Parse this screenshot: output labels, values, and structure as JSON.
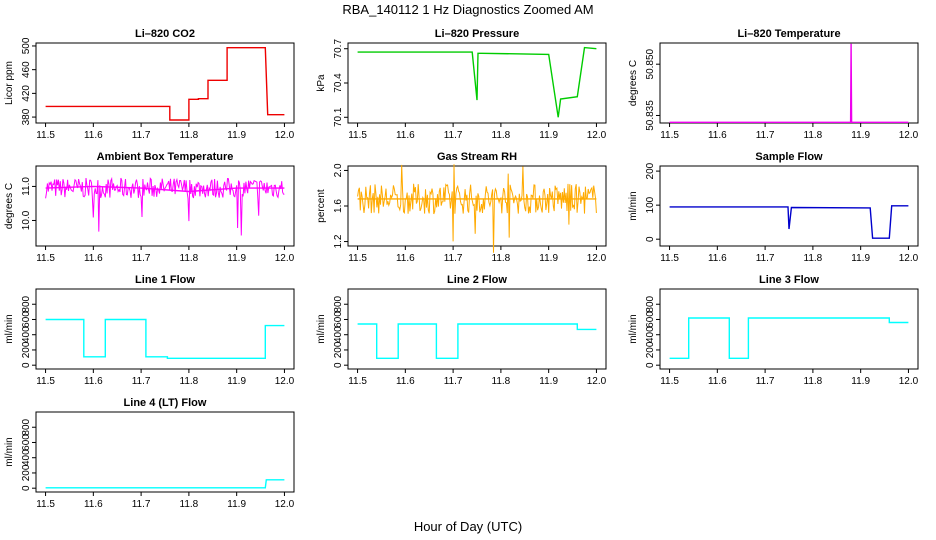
{
  "figure": {
    "title": "RBA_140112  1 Hz Diagnostics Zoomed AM",
    "xlabel": "Hour of Day (UTC)"
  },
  "chart_data": [
    {
      "type": "line",
      "title": "Li–820 CO2",
      "ylabel": "Licor ppm",
      "color": "#ee0000",
      "xlim": [
        11.48,
        12.02
      ],
      "ylim": [
        370,
        505
      ],
      "xticks": [
        "11.5",
        "11.6",
        "11.7",
        "11.8",
        "11.9",
        "12.0"
      ],
      "yticks": [
        "380",
        "420",
        "460",
        "500"
      ],
      "x": [
        11.5,
        11.76,
        11.76,
        11.8,
        11.8,
        11.82,
        11.82,
        11.84,
        11.84,
        11.88,
        11.88,
        11.96,
        11.965,
        12.0
      ],
      "y": [
        398,
        398,
        375,
        375,
        410,
        410,
        411,
        411,
        442,
        442,
        497,
        497,
        384,
        384
      ]
    },
    {
      "type": "line",
      "title": "Li–820 Pressure",
      "ylabel": "kPa",
      "color": "#00cc00",
      "xlim": [
        11.48,
        12.02
      ],
      "ylim": [
        70.05,
        70.75
      ],
      "xticks": [
        "11.5",
        "11.6",
        "11.7",
        "11.8",
        "11.9",
        "12.0"
      ],
      "yticks": [
        "70.1",
        "70.4",
        "70.7"
      ],
      "x": [
        11.5,
        11.74,
        11.75,
        11.752,
        11.76,
        11.9,
        11.92,
        11.925,
        11.96,
        11.975,
        12.0
      ],
      "y": [
        70.67,
        70.67,
        70.25,
        70.66,
        70.66,
        70.65,
        70.1,
        70.26,
        70.28,
        70.71,
        70.7
      ]
    },
    {
      "type": "line",
      "title": "Li–820 Temperature",
      "ylabel": "degrees C",
      "color": "#ee00ee",
      "xlim": [
        11.48,
        12.02
      ],
      "ylim": [
        50.8328,
        50.8562
      ],
      "xticks": [
        "11.5",
        "11.6",
        "11.7",
        "11.8",
        "11.9",
        "12.0"
      ],
      "yticks": [
        "50.835",
        "50.850"
      ],
      "x": [
        11.5,
        11.879,
        11.88,
        11.881,
        12.0
      ],
      "y": [
        50.833,
        50.833,
        50.856,
        50.833,
        50.833
      ]
    },
    {
      "type": "line",
      "title": "Ambient Box Temperature",
      "ylabel": "degrees C",
      "color": "#ff00ff",
      "xlim": [
        11.48,
        12.02
      ],
      "ylim": [
        9.25,
        11.6
      ],
      "xticks": [
        "11.5",
        "11.6",
        "11.7",
        "11.8",
        "11.9",
        "12.0"
      ],
      "yticks": [
        "10.0",
        "11.0"
      ],
      "x": [
        11.5,
        11.6,
        11.7,
        11.8,
        11.9,
        12.0
      ],
      "y": [
        10.95,
        11.0,
        10.95,
        10.85,
        10.95,
        10.95
      ]
    },
    {
      "type": "line",
      "title": "Gas Stream RH",
      "ylabel": "percent",
      "color": "#ffaa00",
      "xlim": [
        11.48,
        12.02
      ],
      "ylim": [
        1.15,
        2.05
      ],
      "xticks": [
        "11.5",
        "11.6",
        "11.7",
        "11.8",
        "11.9",
        "12.0"
      ],
      "yticks": [
        "1.2",
        "1.6",
        "2.0"
      ],
      "x": [
        11.5,
        11.6,
        11.7,
        11.8,
        11.9,
        12.0
      ],
      "y": [
        1.68,
        1.68,
        1.68,
        1.68,
        1.68,
        1.68
      ]
    },
    {
      "type": "line",
      "title": "Sample Flow",
      "ylabel": "ml/min",
      "color": "#0000cc",
      "xlim": [
        11.48,
        12.02
      ],
      "ylim": [
        -20,
        215
      ],
      "xticks": [
        "11.5",
        "11.6",
        "11.7",
        "11.8",
        "11.9",
        "12.0"
      ],
      "yticks": [
        "0",
        "100",
        "200"
      ],
      "x": [
        11.5,
        11.748,
        11.75,
        11.755,
        11.92,
        11.925,
        11.96,
        11.965,
        12.0
      ],
      "y": [
        95,
        95,
        30,
        93,
        92,
        3,
        3,
        98,
        98
      ]
    },
    {
      "type": "line",
      "title": "Line 1 Flow",
      "ylabel": "ml/min",
      "color": "#00ffff",
      "xlim": [
        11.48,
        12.02
      ],
      "ylim": [
        -50,
        1000
      ],
      "xticks": [
        "11.5",
        "11.6",
        "11.7",
        "11.8",
        "11.9",
        "12.0"
      ],
      "yticks": [
        "0",
        "200",
        "400",
        "600",
        "800"
      ],
      "x": [
        11.5,
        11.58,
        11.58,
        11.625,
        11.625,
        11.71,
        11.71,
        11.755,
        11.755,
        11.96,
        11.96,
        12.0
      ],
      "y": [
        600,
        600,
        110,
        110,
        600,
        600,
        110,
        110,
        90,
        90,
        520,
        520
      ]
    },
    {
      "type": "line",
      "title": "Line 2 Flow",
      "ylabel": "ml/min",
      "color": "#00ffff",
      "xlim": [
        11.48,
        12.02
      ],
      "ylim": [
        -50,
        1000
      ],
      "xticks": [
        "11.5",
        "11.6",
        "11.7",
        "11.8",
        "11.9",
        "12.0"
      ],
      "yticks": [
        "0",
        "200",
        "400",
        "600",
        "800"
      ],
      "x": [
        11.5,
        11.54,
        11.54,
        11.585,
        11.585,
        11.665,
        11.665,
        11.71,
        11.71,
        11.96,
        11.96,
        12.0
      ],
      "y": [
        540,
        540,
        90,
        90,
        540,
        540,
        90,
        90,
        540,
        540,
        470,
        470
      ]
    },
    {
      "type": "line",
      "title": "Line 3 Flow",
      "ylabel": "ml/min",
      "color": "#00ffff",
      "xlim": [
        11.48,
        12.02
      ],
      "ylim": [
        -50,
        1000
      ],
      "xticks": [
        "11.5",
        "11.6",
        "11.7",
        "11.8",
        "11.9",
        "12.0"
      ],
      "yticks": [
        "0",
        "200",
        "400",
        "600",
        "800"
      ],
      "x": [
        11.5,
        11.54,
        11.54,
        11.625,
        11.625,
        11.665,
        11.665,
        11.96,
        11.96,
        12.0
      ],
      "y": [
        90,
        90,
        620,
        620,
        90,
        90,
        620,
        620,
        560,
        560
      ]
    },
    {
      "type": "line",
      "title": "Line 4 (LT) Flow",
      "ylabel": "ml/min",
      "color": "#00ffff",
      "xlim": [
        11.48,
        12.02
      ],
      "ylim": [
        -50,
        1000
      ],
      "xticks": [
        "11.5",
        "11.6",
        "11.7",
        "11.8",
        "11.9",
        "12.0"
      ],
      "yticks": [
        "0",
        "200",
        "400",
        "600",
        "800"
      ],
      "x": [
        11.5,
        11.96,
        11.962,
        12.0
      ],
      "y": [
        5,
        5,
        110,
        110
      ]
    }
  ]
}
